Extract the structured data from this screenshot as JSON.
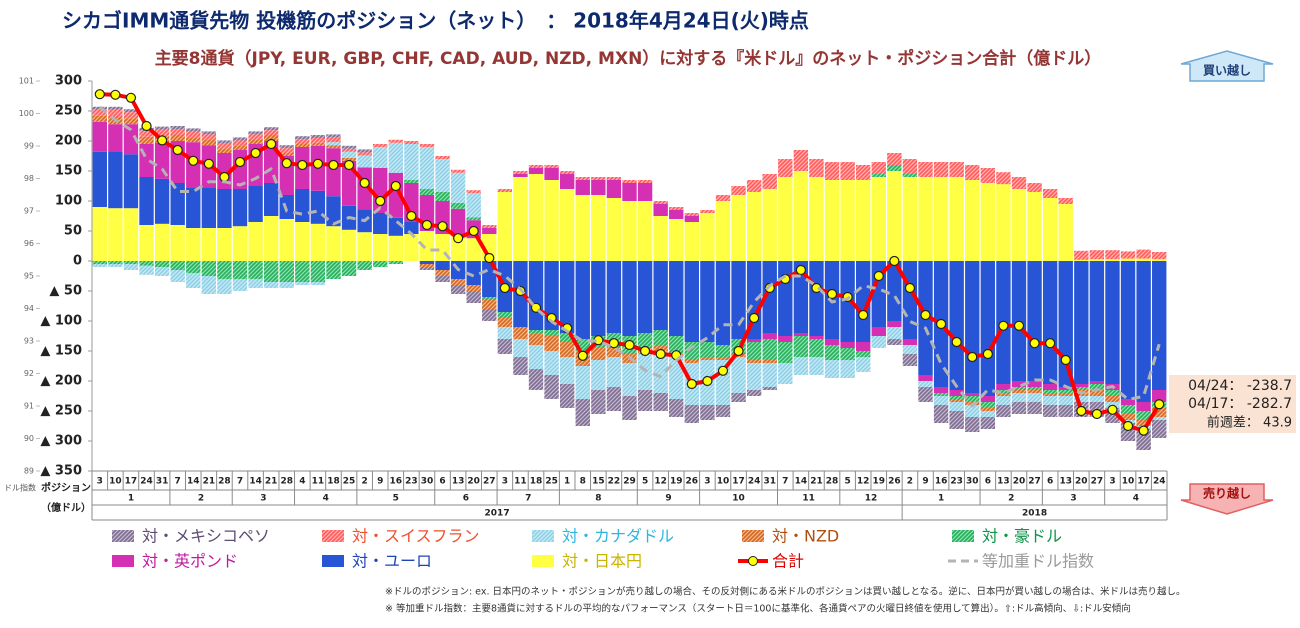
{
  "chart_data": {
    "type": "bar",
    "title": "シカゴIMM通貨先物 投機筋のポジション（ネット）　：  2018年4月24日(火)時点",
    "subtitle": "主要8通貨（JPY, EUR, GBP, CHF, CAD, AUD, NZD, MXN）に対する『米ドル』のネット・ポジション合計（億ドル）",
    "y_label": [
      "ポジション",
      "（億ドル）"
    ],
    "y2_label": "ドル指数",
    "buy_label": "買い越し",
    "sell_label": "売り越し",
    "annotations": [
      "04/24： -238.7",
      "04/17： -282.7",
      "前週差： 43.9"
    ],
    "footnotes": [
      "※ドルのポジション: ex. 日本円のネット・ポジションが売り越しの場合、その反対側にある米ドルのポジションは買い越しとなる。逆に、日本円が買い越しの場合は、米ドルは売り越し。",
      "※ 等加重ドル指数：主要8通貨に対するドルの平均的なパフォーマンス（スタート日＝100に基準化、各通貨ペアの火曜日終値を使用して算出）。⇧:ドル高傾向、⇩:ドル安傾向"
    ],
    "years": [
      {
        "label": "2017",
        "months": [
          {
            "label": "1",
            "days": [
              "3",
              "10",
              "17",
              "24",
              "31"
            ]
          },
          {
            "label": "2",
            "days": [
              "7",
              "14",
              "21",
              "28"
            ]
          },
          {
            "label": "3",
            "days": [
              "7",
              "14",
              "21",
              "28"
            ]
          },
          {
            "label": "4",
            "days": [
              "4",
              "11",
              "18",
              "25"
            ]
          },
          {
            "label": "5",
            "days": [
              "2",
              "9",
              "16",
              "23",
              "30"
            ]
          },
          {
            "label": "6",
            "days": [
              "6",
              "13",
              "20",
              "27"
            ]
          },
          {
            "label": "7",
            "days": [
              "3",
              "11",
              "18",
              "25"
            ]
          },
          {
            "label": "8",
            "days": [
              "1",
              "8",
              "15",
              "22",
              "29"
            ]
          },
          {
            "label": "9",
            "days": [
              "5",
              "12",
              "19",
              "26"
            ]
          },
          {
            "label": "10",
            "days": [
              "3",
              "10",
              "17",
              "24",
              "31"
            ]
          },
          {
            "label": "11",
            "days": [
              "7",
              "14",
              "21",
              "28"
            ]
          },
          {
            "label": "12",
            "days": [
              "5",
              "12",
              "19",
              "26"
            ]
          }
        ]
      },
      {
        "label": "2018",
        "months": [
          {
            "label": "1",
            "days": [
              "2",
              "9",
              "16",
              "23",
              "30"
            ]
          },
          {
            "label": "2",
            "days": [
              "6",
              "13",
              "20",
              "27"
            ]
          },
          {
            "label": "3",
            "days": [
              "6",
              "13",
              "20",
              "27"
            ]
          },
          {
            "label": "4",
            "days": [
              "3",
              "10",
              "17",
              "24"
            ]
          }
        ]
      }
    ],
    "ylim": [
      -350,
      300
    ],
    "yticks": [
      300,
      250,
      200,
      150,
      100,
      50,
      0,
      {
        "value": -50,
        "label": "▲ 50"
      },
      {
        "value": -100,
        "label": "▲ 100"
      },
      {
        "value": -150,
        "label": "▲ 150"
      },
      {
        "value": -200,
        "label": "▲ 200"
      },
      {
        "value": -250,
        "label": "▲ 250"
      },
      {
        "value": -300,
        "label": "▲ 300"
      },
      {
        "value": -350,
        "label": "▲ 350"
      }
    ],
    "y2lim": [
      89,
      101
    ],
    "y2ticks": [
      89,
      90,
      91,
      92,
      93,
      94,
      95,
      96,
      97,
      98,
      99,
      100,
      101
    ],
    "grid": false,
    "series": [
      {
        "name": "対・メキシコペソ",
        "type": "bar",
        "color": "#7d6b91",
        "hatch": true,
        "text_color": "#5f4b74",
        "values": [
          5,
          5,
          5,
          5,
          5,
          5,
          5,
          5,
          5,
          5,
          5,
          5,
          5,
          5,
          5,
          5,
          5,
          5,
          0,
          0,
          0,
          -5,
          -10,
          -15,
          -20,
          -20,
          -25,
          -30,
          -35,
          -40,
          -40,
          -45,
          -40,
          -40,
          -40,
          -35,
          -30,
          -30,
          -30,
          -25,
          -20,
          -15,
          -10,
          -5,
          0,
          0,
          0,
          0,
          0,
          0,
          0,
          -10,
          -20,
          -25,
          -30,
          -30,
          -25,
          -20,
          -20,
          -20,
          -20,
          -20,
          -20,
          -25,
          -25,
          -25,
          -30,
          -35,
          -30
        ]
      },
      {
        "name": "対・スイスフラン",
        "type": "bar",
        "color": "#ff5b5b",
        "hatch": true,
        "text_color": "#f0502f",
        "values": [
          10,
          12,
          10,
          10,
          10,
          10,
          10,
          8,
          8,
          8,
          8,
          8,
          8,
          8,
          8,
          8,
          5,
          5,
          5,
          5,
          5,
          5,
          5,
          5,
          5,
          5,
          5,
          5,
          5,
          5,
          5,
          5,
          5,
          5,
          5,
          5,
          5,
          5,
          5,
          5,
          10,
          15,
          20,
          25,
          30,
          35,
          30,
          30,
          30,
          25,
          20,
          20,
          25,
          25,
          25,
          25,
          25,
          25,
          20,
          20,
          15,
          15,
          10,
          15,
          15,
          15,
          12,
          15,
          12
        ]
      },
      {
        "name": "対・カナダドル",
        "type": "bar",
        "color": "#8fd0e6",
        "hatch": true,
        "text_color": "#2fb5e0",
        "values": [
          -5,
          -5,
          -10,
          -15,
          -15,
          -20,
          -25,
          -30,
          -25,
          -20,
          -15,
          -10,
          -10,
          -5,
          -5,
          5,
          10,
          20,
          35,
          50,
          60,
          70,
          55,
          50,
          40,
          0,
          -20,
          -30,
          -40,
          -40,
          -45,
          -55,
          -50,
          -50,
          -55,
          -60,
          -70,
          -70,
          -70,
          -75,
          -75,
          -60,
          -45,
          -40,
          -35,
          -30,
          -30,
          -30,
          -30,
          -25,
          -20,
          -20,
          -15,
          -10,
          -15,
          -15,
          -20,
          -10,
          -15,
          -15,
          -15,
          -15,
          -15,
          -10,
          -10,
          -10,
          -5,
          -5,
          -5
        ]
      },
      {
        "name": "対・NZD",
        "type": "bar",
        "color": "#d9661a",
        "hatch": true,
        "text_color": "#b24d12",
        "values": [
          10,
          12,
          10,
          12,
          12,
          10,
          8,
          10,
          8,
          8,
          8,
          10,
          5,
          5,
          5,
          5,
          5,
          0,
          0,
          0,
          0,
          -5,
          -10,
          -10,
          -10,
          -15,
          -15,
          -20,
          -20,
          -25,
          -25,
          -25,
          -20,
          -15,
          -15,
          -10,
          -10,
          -5,
          -5,
          -5,
          -5,
          -5,
          -5,
          -5,
          0,
          0,
          0,
          0,
          0,
          0,
          0,
          0,
          0,
          0,
          0,
          -5,
          -5,
          -5,
          -5,
          -5,
          -5,
          -5,
          -5,
          -10,
          -10,
          -10,
          -10,
          -10,
          -15
        ]
      },
      {
        "name": "対・豪ドル",
        "type": "bar",
        "color": "#1fb25a",
        "hatch": true,
        "text_color": "#119447",
        "values": [
          -5,
          -5,
          -5,
          -8,
          -10,
          -15,
          -20,
          -25,
          -30,
          -30,
          -30,
          -35,
          -35,
          -35,
          -35,
          -30,
          -25,
          -15,
          -10,
          -5,
          5,
          10,
          15,
          10,
          5,
          -5,
          -10,
          0,
          -5,
          -10,
          -15,
          -20,
          -20,
          -25,
          -30,
          -25,
          -25,
          -30,
          -30,
          -25,
          -20,
          -25,
          -30,
          -35,
          -35,
          -35,
          -30,
          -25,
          -20,
          -10,
          5,
          10,
          5,
          0,
          -5,
          -5,
          -10,
          -10,
          -5,
          -5,
          -5,
          -5,
          -5,
          -5,
          -10,
          -10,
          -15,
          -15,
          -10
        ]
      },
      {
        "name": "対・英ポンド",
        "type": "bar",
        "color": "#d52fb3",
        "hatch": false,
        "text_color": "#c2189e",
        "values": [
          50,
          45,
          50,
          55,
          60,
          70,
          75,
          70,
          60,
          65,
          70,
          70,
          65,
          70,
          75,
          80,
          75,
          70,
          75,
          75,
          65,
          60,
          55,
          45,
          30,
          10,
          0,
          5,
          10,
          20,
          25,
          25,
          25,
          30,
          30,
          30,
          20,
          15,
          10,
          0,
          0,
          0,
          -5,
          -10,
          -10,
          -5,
          -5,
          -10,
          -10,
          -15,
          -15,
          -10,
          -10,
          -10,
          -10,
          -10,
          -5,
          -10,
          -10,
          -10,
          -10,
          -10,
          -5,
          -5,
          -5,
          -10,
          -10,
          -15,
          -20
        ]
      },
      {
        "name": "対・ユーロ",
        "type": "bar",
        "color": "#2755d6",
        "hatch": false,
        "text_color": "#1d44b8",
        "values": [
          92,
          95,
          90,
          80,
          75,
          70,
          68,
          68,
          65,
          62,
          60,
          55,
          40,
          55,
          55,
          50,
          40,
          38,
          35,
          30,
          20,
          -5,
          -15,
          -30,
          -40,
          -60,
          -85,
          -110,
          -115,
          -115,
          -120,
          -130,
          -125,
          -120,
          -125,
          -120,
          -115,
          -125,
          -135,
          -135,
          -140,
          -130,
          -130,
          -120,
          -125,
          -120,
          -125,
          -130,
          -135,
          -135,
          -110,
          -100,
          -130,
          -190,
          -210,
          -215,
          -220,
          -225,
          -205,
          -200,
          -200,
          -205,
          -210,
          -205,
          -200,
          -205,
          -230,
          -235,
          -215
        ]
      },
      {
        "name": "対・日本円",
        "type": "bar",
        "color": "#ffff44",
        "hatch": false,
        "text_color": "#c9b400",
        "values": [
          90,
          88,
          88,
          60,
          62,
          60,
          55,
          55,
          55,
          58,
          65,
          75,
          70,
          65,
          62,
          58,
          52,
          48,
          45,
          42,
          45,
          50,
          45,
          42,
          38,
          45,
          115,
          140,
          145,
          135,
          120,
          110,
          110,
          105,
          100,
          100,
          75,
          70,
          65,
          80,
          100,
          110,
          115,
          120,
          140,
          150,
          140,
          135,
          135,
          135,
          140,
          150,
          140,
          140,
          140,
          140,
          135,
          130,
          128,
          120,
          115,
          105,
          95,
          2,
          3,
          3,
          4,
          4,
          3
        ]
      },
      {
        "name": "合計",
        "type": "line",
        "color": "#ff0000",
        "markers": true,
        "marker_color": "#ffff00",
        "text_color": "#e00000",
        "values": [
          278,
          277,
          272,
          225,
          201,
          185,
          167,
          162,
          140,
          165,
          180,
          195,
          163,
          160,
          162,
          160,
          160,
          130,
          100,
          125,
          75,
          60,
          58,
          38,
          50,
          5,
          -45,
          -50,
          -78,
          -95,
          -112,
          -158,
          -132,
          -137,
          -140,
          -150,
          -155,
          -157,
          -205,
          -200,
          -183,
          -150,
          -95,
          -45,
          -30,
          -15,
          -45,
          -55,
          -60,
          -90,
          -25,
          0,
          -45,
          -90,
          -105,
          -135,
          -160,
          -155,
          -108,
          -108,
          -137,
          -137,
          -165,
          -250,
          -255,
          -248,
          -275,
          -282.7,
          -238.7
        ]
      },
      {
        "name": "等加重ドル指数",
        "type": "line",
        "axis": "y2",
        "dashed": true,
        "color": "#b4b4b4",
        "markers": false,
        "text_color": "#9a9a9a",
        "values": [
          100.2,
          99.8,
          99.5,
          98.6,
          98.3,
          97.6,
          97.6,
          97.9,
          97.9,
          97.8,
          98,
          98.3,
          97,
          96.9,
          97,
          96.6,
          96.8,
          96.7,
          97.1,
          96.7,
          96.3,
          95.8,
          95.8,
          95.2,
          95,
          95.2,
          95,
          94.6,
          94,
          93.6,
          93.3,
          93,
          93,
          92.8,
          92.5,
          92.1,
          91.9,
          92.4,
          92.8,
          93.1,
          93.5,
          93.5,
          94.2,
          94.7,
          95,
          95,
          94.7,
          94.2,
          94.3,
          94.7,
          94.6,
          94.4,
          93.6,
          93.4,
          92.3,
          91.6,
          91,
          91.5,
          91.4,
          91.6,
          91.8,
          91.8,
          91.6,
          91.4,
          91.5,
          91.6,
          91.2,
          91.3,
          92.9
        ]
      }
    ]
  }
}
